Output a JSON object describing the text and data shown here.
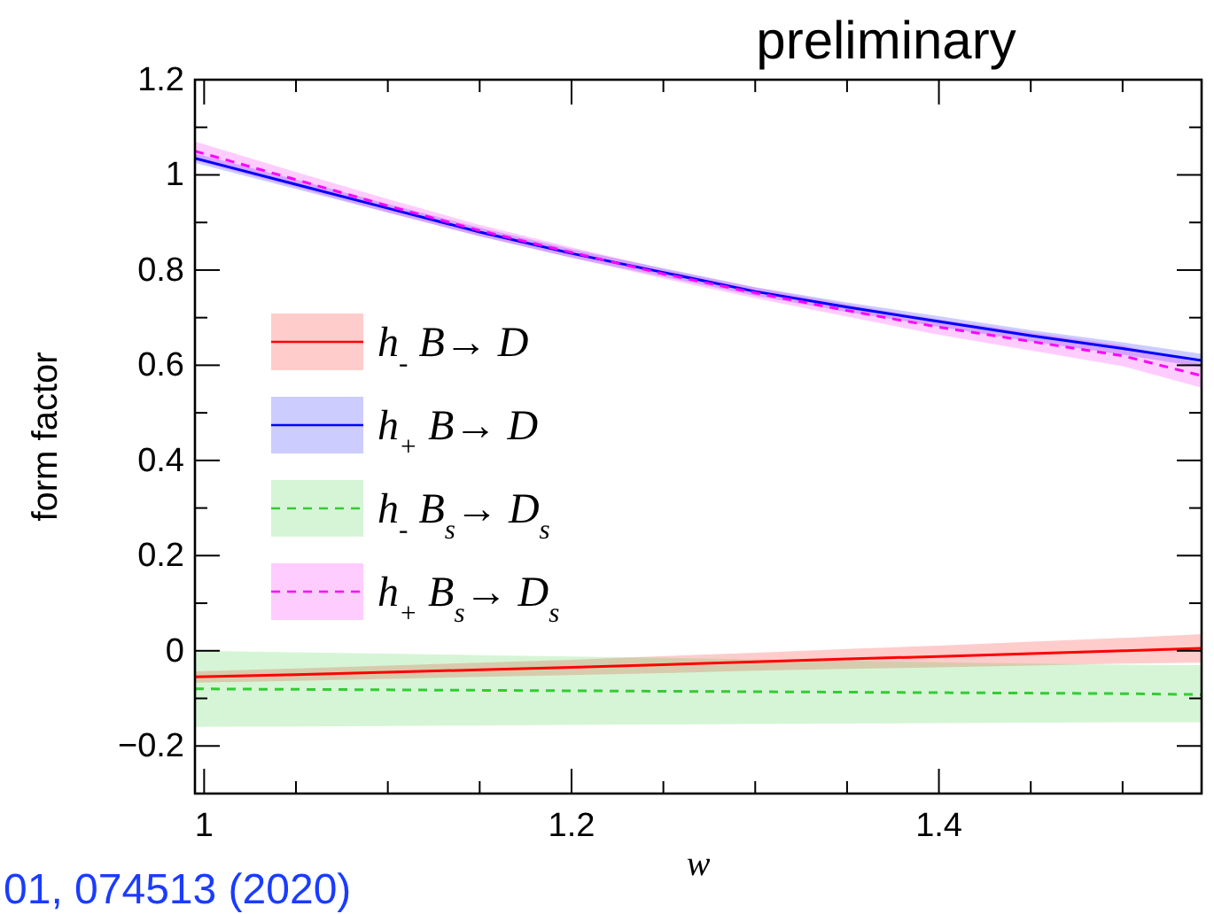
{
  "chart_data": {
    "type": "line",
    "title": "preliminary",
    "xlabel": "w",
    "ylabel": "form factor",
    "x": [
      0.995,
      1.05,
      1.1,
      1.15,
      1.2,
      1.25,
      1.3,
      1.35,
      1.4,
      1.45,
      1.5,
      1.543
    ],
    "xlim": [
      0.995,
      1.543
    ],
    "ylim": [
      -0.3,
      1.2
    ],
    "xticks": [
      1,
      {
        "value": 1.05,
        "label": null
      },
      {
        "value": 1.1,
        "label": null
      },
      {
        "value": 1.15,
        "label": null
      },
      1.2,
      {
        "value": 1.25,
        "label": null
      },
      {
        "value": 1.3,
        "label": null
      },
      {
        "value": 1.35,
        "label": null
      },
      1.4,
      {
        "value": 1.45,
        "label": null
      },
      {
        "value": 1.5,
        "label": null
      }
    ],
    "yticks": [
      {
        "value": -0.2,
        "label": "−0.2"
      },
      {
        "value": -0.1,
        "label": null
      },
      0,
      {
        "value": 0.1,
        "label": null
      },
      0.2,
      {
        "value": 0.3,
        "label": null
      },
      0.4,
      {
        "value": 0.5,
        "label": null
      },
      0.6,
      {
        "value": 0.7,
        "label": null
      },
      0.8,
      {
        "value": 0.9,
        "label": null
      },
      1,
      {
        "value": 1.1,
        "label": null
      },
      1.2
    ],
    "legend": "left",
    "series": [
      {
        "name": "h$_{-}$ B→ D",
        "color": "#ff0000",
        "line_style": "solid",
        "values": [
          -0.055,
          -0.05,
          -0.045,
          -0.04,
          -0.035,
          -0.029,
          -0.023,
          -0.017,
          -0.012,
          -0.006,
          0,
          0.005
        ],
        "lower": [
          -0.067,
          -0.063,
          -0.059,
          -0.055,
          -0.051,
          -0.047,
          -0.042,
          -0.038,
          -0.035,
          -0.031,
          -0.027,
          -0.025
        ],
        "upper": [
          -0.043,
          -0.037,
          -0.031,
          -0.025,
          -0.019,
          -0.011,
          -0.004,
          0.004,
          0.011,
          0.019,
          0.027,
          0.035
        ]
      },
      {
        "name": "h$_{+}$ B→ D",
        "color": "#0000ff",
        "line_style": "solid",
        "values": [
          1.035,
          0.98,
          0.93,
          0.88,
          0.835,
          0.795,
          0.755,
          0.722,
          0.692,
          0.662,
          0.635,
          0.61
        ],
        "lower": [
          1.025,
          0.97,
          0.921,
          0.871,
          0.826,
          0.786,
          0.746,
          0.712,
          0.681,
          0.65,
          0.622,
          0.596
        ],
        "upper": [
          1.045,
          0.99,
          0.939,
          0.889,
          0.844,
          0.804,
          0.764,
          0.732,
          0.703,
          0.674,
          0.648,
          0.624
        ]
      },
      {
        "name": "h$_{-}$ B$_{s}$→ D$_{s}$",
        "color": "#33cc33",
        "line_style": "dashed",
        "values": [
          -0.08,
          -0.081,
          -0.082,
          -0.083,
          -0.084,
          -0.085,
          -0.086,
          -0.087,
          -0.088,
          -0.089,
          -0.09,
          -0.092
        ],
        "lower": [
          -0.16,
          -0.159,
          -0.158,
          -0.157,
          -0.156,
          -0.155,
          -0.154,
          -0.153,
          -0.152,
          -0.151,
          -0.15,
          -0.15
        ],
        "upper": [
          0,
          -0.003,
          -0.006,
          -0.009,
          -0.012,
          -0.015,
          -0.018,
          -0.021,
          -0.024,
          -0.027,
          -0.029,
          -0.03
        ]
      },
      {
        "name": "h$_{+}$ B$_{s}$→ D$_{s}$",
        "color": "#ff00ff",
        "line_style": "dashed",
        "values": [
          1.05,
          0.99,
          0.935,
          0.883,
          0.837,
          0.792,
          0.752,
          0.715,
          0.68,
          0.65,
          0.62,
          0.578
        ],
        "lower": [
          1.03,
          0.974,
          0.921,
          0.871,
          0.826,
          0.782,
          0.741,
          0.702,
          0.664,
          0.631,
          0.598,
          0.553
        ],
        "upper": [
          1.07,
          1.006,
          0.949,
          0.895,
          0.848,
          0.802,
          0.763,
          0.728,
          0.696,
          0.669,
          0.642,
          0.603
        ]
      }
    ],
    "annotations": [
      "01, 074513 (2020)"
    ]
  }
}
